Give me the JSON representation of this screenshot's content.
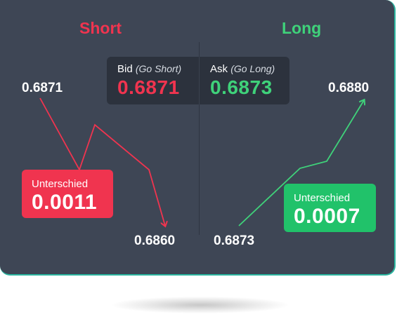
{
  "titles": {
    "short": "Short",
    "long": "Long"
  },
  "quote": {
    "bid": {
      "label": "Bid",
      "sub": "(Go Short)",
      "price": "0.6871"
    },
    "ask": {
      "label": "Ask",
      "sub": "(Go Long)",
      "price": "0.6873"
    }
  },
  "values": {
    "short_start": "0.6871",
    "short_end": "0.6860",
    "long_start": "0.6873",
    "long_end": "0.6880"
  },
  "diff": {
    "short": {
      "label": "Unterschied",
      "value": "0.0011"
    },
    "long": {
      "label": "Unterschied",
      "value": "0.0007"
    }
  },
  "colors": {
    "short": "#f0344f",
    "long": "#3fd27a",
    "panel": "#3e4655"
  }
}
